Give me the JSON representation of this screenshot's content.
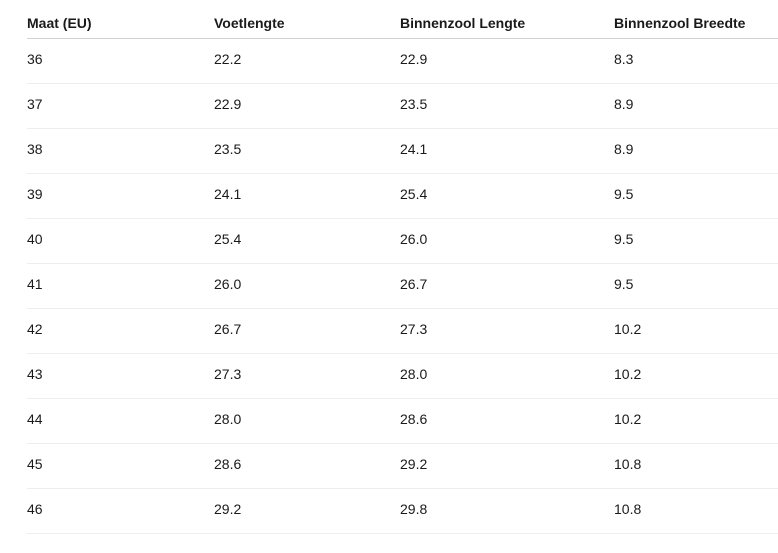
{
  "table": {
    "columns": [
      "Maat (EU)",
      "Voetlengte",
      "Binnenzool Lengte",
      "Binnenzool Breedte"
    ],
    "rows": [
      [
        "36",
        "22.2",
        "22.9",
        "8.3"
      ],
      [
        "37",
        "22.9",
        "23.5",
        "8.9"
      ],
      [
        "38",
        "23.5",
        "24.1",
        "8.9"
      ],
      [
        "39",
        "24.1",
        "25.4",
        "9.5"
      ],
      [
        "40",
        "25.4",
        "26.0",
        "9.5"
      ],
      [
        "41",
        "26.0",
        "26.7",
        "9.5"
      ],
      [
        "42",
        "26.7",
        "27.3",
        "10.2"
      ],
      [
        "43",
        "27.3",
        "28.0",
        "10.2"
      ],
      [
        "44",
        "28.0",
        "28.6",
        "10.2"
      ],
      [
        "45",
        "28.6",
        "29.2",
        "10.8"
      ],
      [
        "46",
        "29.2",
        "29.8",
        "10.8"
      ]
    ]
  },
  "colors": {
    "text": "#1a1a1a",
    "header_border": "#d2d2d2",
    "row_border": "#eeeeee",
    "background": "#ffffff"
  },
  "chart_data": {
    "type": "table",
    "title": "",
    "columns": [
      "Maat (EU)",
      "Voetlengte",
      "Binnenzool Lengte",
      "Binnenzool Breedte"
    ],
    "rows": [
      [
        36,
        22.2,
        22.9,
        8.3
      ],
      [
        37,
        22.9,
        23.5,
        8.9
      ],
      [
        38,
        23.5,
        24.1,
        8.9
      ],
      [
        39,
        24.1,
        25.4,
        9.5
      ],
      [
        40,
        25.4,
        26.0,
        9.5
      ],
      [
        41,
        26.0,
        26.7,
        9.5
      ],
      [
        42,
        26.7,
        27.3,
        10.2
      ],
      [
        43,
        27.3,
        28.0,
        10.2
      ],
      [
        44,
        28.0,
        28.6,
        10.2
      ],
      [
        45,
        28.6,
        29.2,
        10.8
      ],
      [
        46,
        29.2,
        29.8,
        10.8
      ]
    ]
  }
}
